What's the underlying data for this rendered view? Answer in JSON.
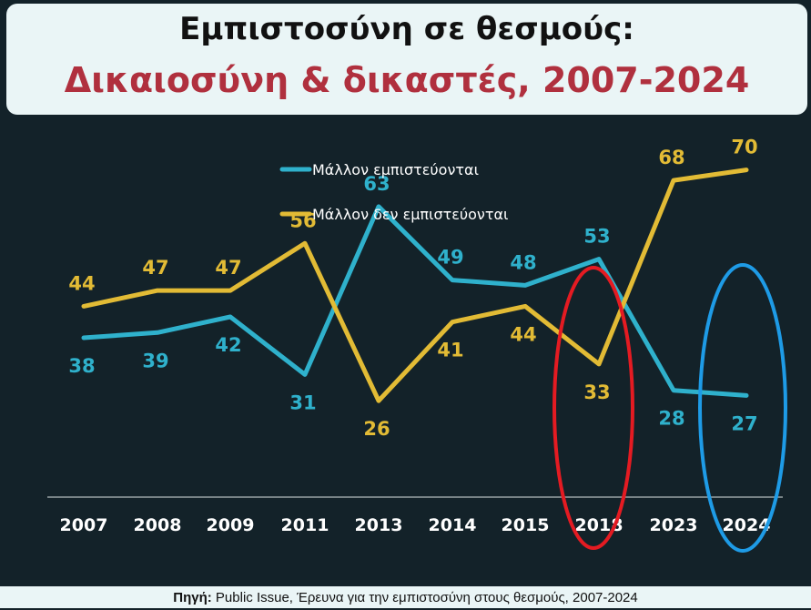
{
  "title": {
    "line1": "Εμπιστοσύνη σε θεσμούς:",
    "line2": "Δικαιοσύνη & δικαστές, 2007-2024"
  },
  "source": {
    "label": "Πηγή:",
    "text": "Public Issue, Έρευνα για την εμπιστοσύνη στους θεσμούς, 2007-2024"
  },
  "chart_data": {
    "type": "line",
    "categories": [
      "2007",
      "2008",
      "2009",
      "2011",
      "2013",
      "2014",
      "2015",
      "2018",
      "2023",
      "2024"
    ],
    "series": [
      {
        "name": "Μάλλον εμπιστεύονται",
        "color": "#2fb1cc",
        "values": [
          38,
          39,
          42,
          31,
          63,
          49,
          48,
          53,
          28,
          27
        ]
      },
      {
        "name": "Μάλλον δεν εμπιστεύονται",
        "color": "#e2bb35",
        "values": [
          44,
          47,
          47,
          56,
          26,
          41,
          44,
          33,
          68,
          70
        ]
      }
    ],
    "legend_position": "top-center",
    "data_labels": true,
    "highlights": [
      {
        "category": "2018",
        "shape": "ellipse",
        "color": "#e41b22"
      },
      {
        "category": "2024",
        "shape": "ellipse",
        "color": "#1e9be6"
      }
    ]
  }
}
